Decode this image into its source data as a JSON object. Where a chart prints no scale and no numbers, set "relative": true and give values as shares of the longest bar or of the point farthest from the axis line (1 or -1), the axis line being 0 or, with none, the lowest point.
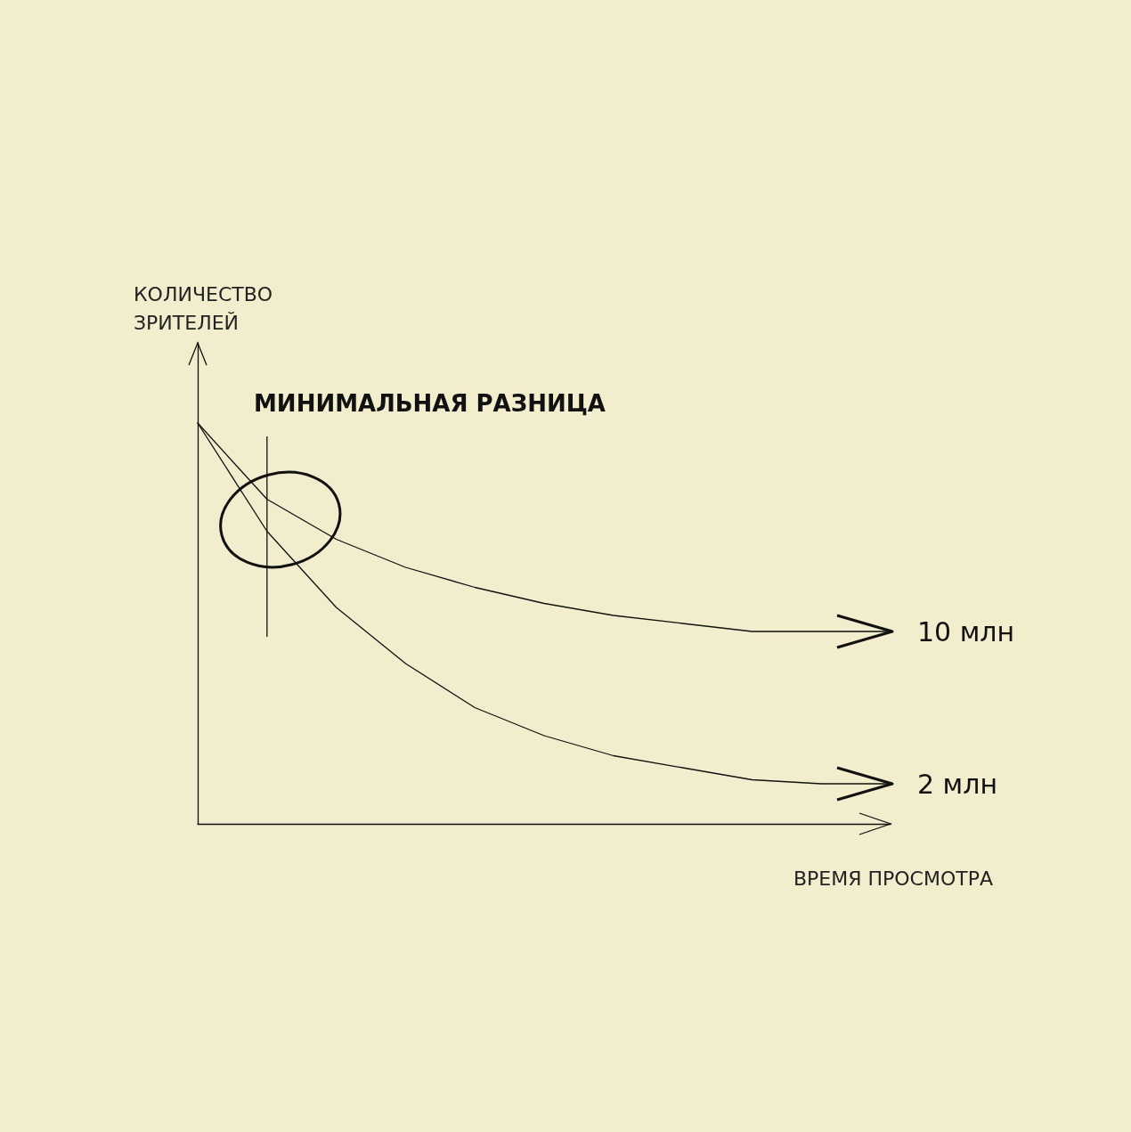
{
  "chart_data": {
    "type": "line",
    "relative": true,
    "xlabel": "ВРЕМЯ ПРОСМОТРА",
    "ylabel": "КОЛИЧЕСТВО ЗРИТЕЛЕЙ",
    "categories": [
      null,
      null,
      null,
      null,
      null,
      null,
      null,
      null,
      null,
      null,
      null
    ],
    "series": [
      {
        "name": "10 млн",
        "color": "#111111",
        "values": [
          1,
          0.81,
          0.71,
          0.64,
          0.59,
          0.55,
          0.52,
          0.5,
          0.48,
          0.48,
          0.48
        ]
      },
      {
        "name": "2 млн",
        "color": "#111111",
        "values": [
          1,
          0.73,
          0.54,
          0.4,
          0.29,
          0.22,
          0.17,
          0.14,
          0.11,
          0.1,
          0.1
        ]
      }
    ],
    "annotations": [
      "МИНИМАЛЬНАЯ РАЗНИЦА"
    ],
    "grid": false,
    "legend": "right",
    "marker": "none",
    "line_style": "solid"
  }
}
